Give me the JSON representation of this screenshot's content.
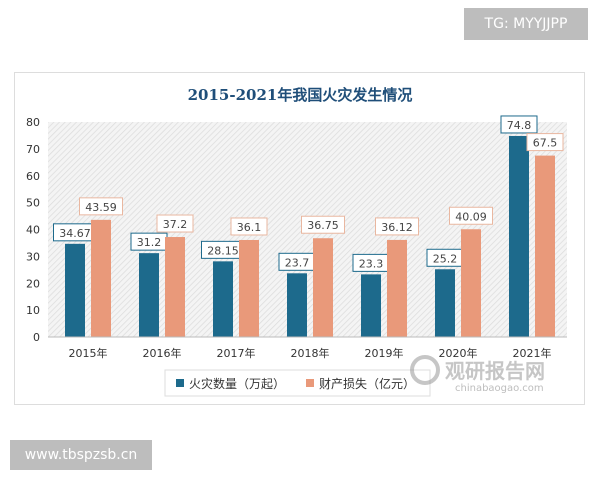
{
  "watermark_top": "TG: MYYJJPP",
  "watermark_bottom": "www.tbspzsb.cn",
  "logo": {
    "name": "观研报告网",
    "url": "chinabaogao.com"
  },
  "colors": {
    "fires": "#1d6a8c",
    "loss": "#e9997a",
    "title": "#1f4e79"
  },
  "chart_data": {
    "type": "bar",
    "title": "2015-2021年我国火灾发生情况",
    "categories": [
      "2015年",
      "2016年",
      "2017年",
      "2018年",
      "2019年",
      "2020年",
      "2021年"
    ],
    "series": [
      {
        "name": "火灾数量（万起）",
        "values": [
          34.67,
          31.2,
          28.15,
          23.7,
          23.3,
          25.2,
          74.8
        ],
        "labels": [
          "34.67",
          "31.2",
          "28.15",
          "23.7",
          "23.3",
          "25.2",
          "74.8"
        ]
      },
      {
        "name": "财产损失（亿元）",
        "values": [
          43.59,
          37.2,
          36.1,
          36.75,
          36.12,
          40.09,
          67.5
        ],
        "labels": [
          "43.59",
          "37.2",
          "36.1",
          "36.75",
          "36.12",
          "40.09",
          "67.5"
        ]
      }
    ],
    "ylim": [
      0,
      80
    ],
    "yticks": [
      "0",
      "10",
      "20",
      "30",
      "40",
      "50",
      "60",
      "70",
      "80"
    ],
    "grid": false,
    "legend": "bottom"
  }
}
